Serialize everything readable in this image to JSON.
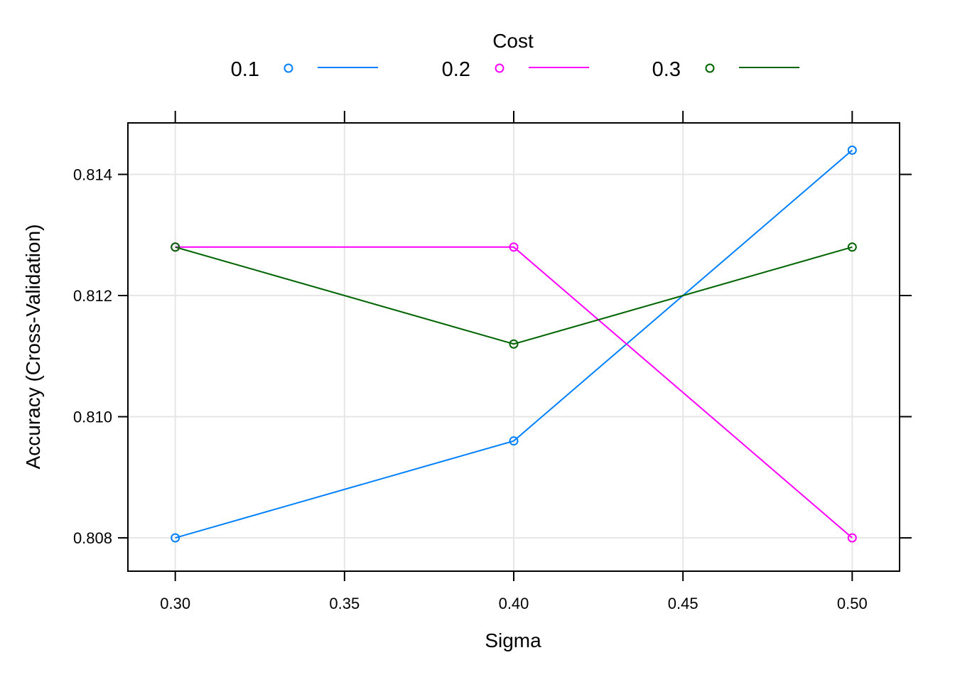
{
  "chart_data": {
    "type": "line",
    "xlabel": "Sigma",
    "ylabel": "Accuracy (Cross-Validation)",
    "legend_title": "Cost",
    "legend_position": "top",
    "grid": true,
    "x": [
      0.3,
      0.4,
      0.5
    ],
    "xlim": [
      0.286,
      0.514
    ],
    "ylim": [
      0.80745,
      0.81485
    ],
    "x_ticks": [
      0.3,
      0.35,
      0.4,
      0.45,
      0.5
    ],
    "x_tick_labels": [
      "0.30",
      "0.35",
      "0.40",
      "0.45",
      "0.50"
    ],
    "y_ticks": [
      0.808,
      0.81,
      0.812,
      0.814
    ],
    "y_tick_labels": [
      "0.808",
      "0.810",
      "0.812",
      "0.814"
    ],
    "series": [
      {
        "name": "0.1",
        "color": "#0080FF",
        "values": [
          0.808,
          0.8096,
          0.8144
        ]
      },
      {
        "name": "0.2",
        "color": "#FF00FF",
        "values": [
          0.8128,
          0.8128,
          0.808
        ]
      },
      {
        "name": "0.3",
        "color": "#006400",
        "values": [
          0.8128,
          0.8112,
          0.8128
        ]
      }
    ],
    "colors": {
      "grid": "#E6E6E6",
      "frame": "#000000"
    }
  }
}
